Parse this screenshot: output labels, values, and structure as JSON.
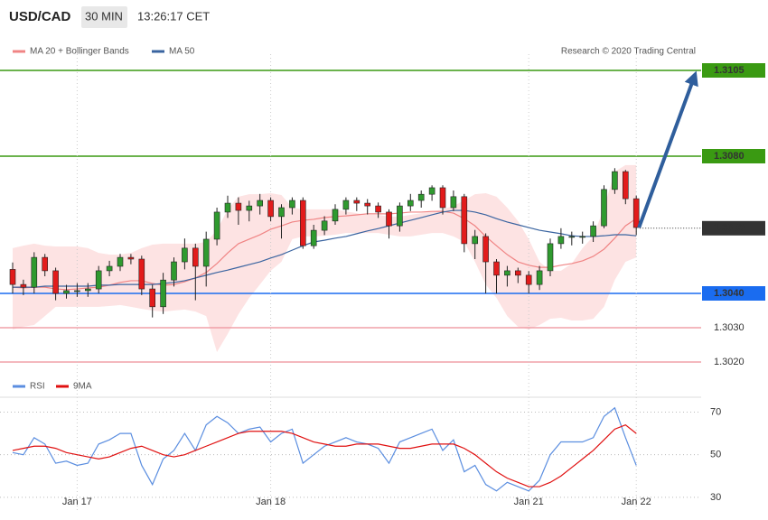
{
  "chart_data": [
    {
      "type": "candlestick",
      "title": "USD/CAD",
      "timeframe": "30 MIN",
      "timestamp": "13:26:17 CET",
      "source": "Research © 2020 Trading Central",
      "up_color": "#2f9a2f",
      "down_color": "#e21b1b",
      "open": [
        1.3047,
        1.30426,
        1.30418,
        1.30505,
        1.30466,
        1.304,
        1.30408,
        1.30408,
        1.30413,
        1.30466,
        1.30479,
        1.30505,
        1.305,
        1.30413,
        1.30361,
        1.30439,
        1.30492,
        1.30532,
        1.30479,
        1.30558,
        1.30637,
        1.30663,
        1.30642,
        1.30655,
        1.30671,
        1.30624,
        1.3065,
        1.30671,
        1.30539,
        1.30584,
        1.30611,
        1.30645,
        1.30671,
        1.30663,
        1.30655,
        1.30637,
        1.30597,
        1.30655,
        1.30671,
        1.30689,
        1.30708,
        1.3065,
        1.30682,
        1.30545,
        1.30566,
        1.30492,
        1.30453,
        1.30466,
        1.30453,
        1.30426,
        1.30466,
        1.30545,
        1.30566,
        1.30566,
        1.30566,
        1.30597,
        1.30703,
        1.30755,
        1.30676
      ],
      "high": [
        1.3049,
        1.3044,
        1.3052,
        1.30515,
        1.30475,
        1.30425,
        1.3043,
        1.3043,
        1.3048,
        1.30495,
        1.30515,
        1.30515,
        1.3051,
        1.30425,
        1.3046,
        1.30505,
        1.3056,
        1.30545,
        1.3058,
        1.3065,
        1.30685,
        1.3068,
        1.3067,
        1.3069,
        1.3068,
        1.3066,
        1.3068,
        1.3068,
        1.306,
        1.30625,
        1.3066,
        1.3068,
        1.3068,
        1.30675,
        1.30665,
        1.30645,
        1.30665,
        1.3069,
        1.307,
        1.30715,
        1.30715,
        1.307,
        1.3069,
        1.30585,
        1.30575,
        1.305,
        1.3048,
        1.30475,
        1.30465,
        1.3048,
        1.3056,
        1.3059,
        1.3058,
        1.3058,
        1.3061,
        1.30715,
        1.30765,
        1.3076,
        1.30685
      ],
      "low": [
        1.304,
        1.30395,
        1.304,
        1.3045,
        1.3038,
        1.30385,
        1.3039,
        1.3039,
        1.304,
        1.3045,
        1.30465,
        1.30485,
        1.30395,
        1.3033,
        1.3034,
        1.3042,
        1.3047,
        1.3038,
        1.3042,
        1.3054,
        1.3062,
        1.306,
        1.3061,
        1.3063,
        1.3061,
        1.3056,
        1.3063,
        1.3053,
        1.3053,
        1.3057,
        1.306,
        1.3063,
        1.3064,
        1.3063,
        1.3062,
        1.3056,
        1.3058,
        1.3064,
        1.3065,
        1.3067,
        1.3063,
        1.3064,
        1.3052,
        1.305,
        1.304,
        1.304,
        1.3042,
        1.3043,
        1.304,
        1.3041,
        1.3045,
        1.3053,
        1.3054,
        1.30545,
        1.3055,
        1.3059,
        1.3069,
        1.3066,
        1.3057
      ],
      "close": [
        1.30426,
        1.30418,
        1.30505,
        1.30466,
        1.304,
        1.30408,
        1.30408,
        1.30413,
        1.30466,
        1.30479,
        1.30505,
        1.305,
        1.30413,
        1.30361,
        1.30439,
        1.30492,
        1.30532,
        1.30479,
        1.30558,
        1.30637,
        1.30663,
        1.30642,
        1.30655,
        1.30671,
        1.30624,
        1.3065,
        1.30671,
        1.30539,
        1.30584,
        1.30611,
        1.30645,
        1.30671,
        1.30663,
        1.30655,
        1.30637,
        1.30597,
        1.30655,
        1.30671,
        1.30689,
        1.30708,
        1.3065,
        1.30682,
        1.30545,
        1.30566,
        1.30492,
        1.30453,
        1.30466,
        1.30453,
        1.30426,
        1.30466,
        1.30545,
        1.30566,
        1.30566,
        1.30566,
        1.30597,
        1.30703,
        1.30755,
        1.30676,
        1.30592
      ],
      "bands": {
        "name": "MA 20 + Bollinger Bands",
        "color": "#f08484",
        "fill": "#fde3e3",
        "middle": [
          1.30418,
          1.30416,
          1.30418,
          1.30418,
          1.30413,
          1.30411,
          1.30413,
          1.30416,
          1.30418,
          1.30424,
          1.30432,
          1.30437,
          1.30437,
          1.30429,
          1.30424,
          1.30426,
          1.30434,
          1.30445,
          1.30461,
          1.30487,
          1.30518,
          1.30545,
          1.30558,
          1.30571,
          1.30587,
          1.30597,
          1.30608,
          1.30613,
          1.30616,
          1.30621,
          1.30624,
          1.30626,
          1.30629,
          1.30632,
          1.30632,
          1.30632,
          1.30634,
          1.30637,
          1.30637,
          1.30639,
          1.30639,
          1.30634,
          1.30618,
          1.30597,
          1.30566,
          1.30539,
          1.30513,
          1.30492,
          1.30482,
          1.30476,
          1.30476,
          1.30482,
          1.30487,
          1.30495,
          1.30508,
          1.30529,
          1.30561,
          1.30597,
          1.30618
        ],
        "upper": [
          1.30532,
          1.30539,
          1.30545,
          1.30539,
          1.30537,
          1.30537,
          1.30537,
          1.30532,
          1.30518,
          1.30513,
          1.30513,
          1.30518,
          1.30532,
          1.30542,
          1.30545,
          1.30545,
          1.30545,
          1.30545,
          1.3055,
          1.30584,
          1.30645,
          1.30682,
          1.30689,
          1.30689,
          1.30692,
          1.30687,
          1.3065,
          1.30645,
          1.30645,
          1.30645,
          1.30645,
          1.30639,
          1.30634,
          1.30629,
          1.30629,
          1.30624,
          1.30624,
          1.30629,
          1.30634,
          1.30639,
          1.30645,
          1.30655,
          1.30671,
          1.30689,
          1.30692,
          1.30682,
          1.3065,
          1.30611,
          1.30558,
          1.30492,
          1.30466,
          1.30466,
          1.30487,
          1.30532,
          1.30566,
          1.3065,
          1.30755,
          1.30774,
          1.30774
        ],
        "lower": [
          1.30295,
          1.30303,
          1.30308,
          1.30334,
          1.30361,
          1.30361,
          1.30361,
          1.30361,
          1.30361,
          1.30363,
          1.30366,
          1.30361,
          1.30355,
          1.3035,
          1.30347,
          1.3035,
          1.30353,
          1.30347,
          1.30334,
          1.30229,
          1.30282,
          1.30339,
          1.30387,
          1.30426,
          1.30466,
          1.30492,
          1.30558,
          1.30566,
          1.30566,
          1.30568,
          1.30571,
          1.30576,
          1.30576,
          1.30576,
          1.30576,
          1.30571,
          1.30566,
          1.30566,
          1.30571,
          1.30576,
          1.30576,
          1.30566,
          1.3055,
          1.30492,
          1.30426,
          1.30387,
          1.30334,
          1.30303,
          1.30295,
          1.30308,
          1.30326,
          1.30329,
          1.30321,
          1.30321,
          1.30326,
          1.30361,
          1.30439,
          1.30492,
          1.30505
        ]
      },
      "ma50": {
        "name": "MA 50",
        "color": "#3a64a0",
        "values": [
          1.30418,
          1.30418,
          1.30418,
          1.30421,
          1.30421,
          1.30421,
          1.30421,
          1.30421,
          1.30424,
          1.30424,
          1.30426,
          1.30426,
          1.30426,
          1.30426,
          1.30429,
          1.30432,
          1.30437,
          1.30445,
          1.30453,
          1.30461,
          1.30468,
          1.30476,
          1.30484,
          1.30492,
          1.30503,
          1.30513,
          1.30526,
          1.30539,
          1.3055,
          1.30555,
          1.30561,
          1.30566,
          1.30574,
          1.30582,
          1.30589,
          1.30597,
          1.30605,
          1.30613,
          1.30621,
          1.30629,
          1.30637,
          1.30642,
          1.30642,
          1.30637,
          1.30629,
          1.30618,
          1.30608,
          1.306,
          1.30592,
          1.30584,
          1.30579,
          1.30574,
          1.30568,
          1.30566,
          1.30566,
          1.30568,
          1.30571,
          1.30571,
          1.30568
        ]
      },
      "ylim": [
        1.301,
        1.3115
      ],
      "levels": [
        {
          "value": 1.3105,
          "color": "#3a9a12",
          "filled": true
        },
        {
          "value": 1.308,
          "label": "1.3080",
          "color": "#3a9a12",
          "filled": true
        },
        {
          "value": 1.3059,
          "color": "#333333",
          "filled": true,
          "dotted": true
        },
        {
          "value": 1.304,
          "label": "1.3040",
          "color": "#1a6cf0",
          "filled": true
        },
        {
          "value": 1.303,
          "label": "1.3030",
          "color": "#f0a0a8",
          "filled": false
        },
        {
          "value": 1.302,
          "label": "1.3020",
          "color": "#f0a0a8",
          "filled": false
        }
      ],
      "forecast_color": "#2f5e9c"
    },
    {
      "type": "line",
      "categories": [
        null,
        null,
        null,
        null,
        null,
        null,
        "Jan 17",
        null,
        null,
        null,
        null,
        null,
        null,
        null,
        null,
        null,
        null,
        null,
        null,
        null,
        null,
        null,
        null,
        null,
        "Jan 18",
        null,
        null,
        null,
        null,
        null,
        null,
        null,
        null,
        null,
        null,
        null,
        null,
        null,
        null,
        null,
        null,
        null,
        null,
        null,
        null,
        null,
        null,
        null,
        "Jan 21",
        null,
        null,
        null,
        null,
        null,
        null,
        null,
        null,
        null,
        "Jan 22"
      ],
      "ylim": [
        24,
        77
      ],
      "yticks": [
        30,
        50,
        70
      ],
      "series": [
        {
          "name": "RSI",
          "color": "#5b8ee0",
          "values": [
            51,
            50,
            58,
            55,
            46,
            47,
            45,
            46,
            55,
            57,
            60,
            60,
            45,
            36,
            48,
            52,
            60,
            52,
            64,
            68,
            65,
            60,
            62,
            63,
            56,
            60,
            62,
            46,
            50,
            54,
            56,
            58,
            56,
            55,
            53,
            46,
            56,
            58,
            60,
            62,
            52,
            57,
            42,
            45,
            36,
            33,
            37,
            35,
            33,
            38,
            50,
            56,
            56,
            56,
            58,
            68,
            72,
            58,
            45
          ]
        },
        {
          "name": "9MA",
          "color": "#e01010",
          "values": [
            52,
            53,
            54,
            54,
            53,
            51,
            50,
            49,
            48,
            49,
            51,
            53,
            54,
            52,
            50,
            49,
            50,
            52,
            54,
            56,
            58,
            60,
            61,
            61,
            61,
            61,
            60,
            58,
            56,
            55,
            54,
            54,
            55,
            55,
            55,
            54,
            53,
            53,
            54,
            55,
            55,
            55,
            53,
            50,
            46,
            42,
            39,
            37,
            35,
            35,
            37,
            40,
            44,
            48,
            52,
            57,
            62,
            64,
            60
          ]
        }
      ]
    }
  ]
}
